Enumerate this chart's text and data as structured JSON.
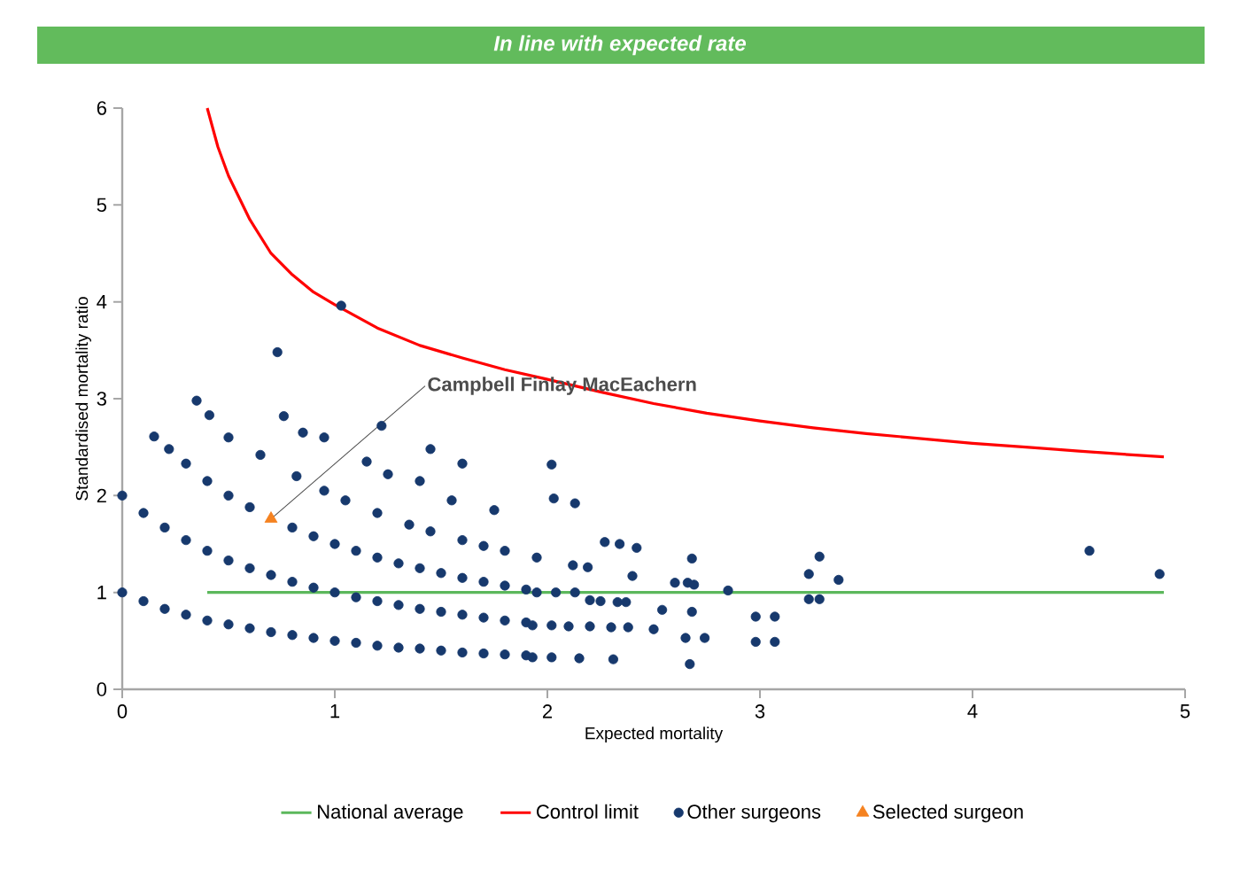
{
  "chart_data": {
    "type": "scatter",
    "title": "In line with expected rate",
    "xlabel": "Expected mortality",
    "ylabel": "Standardised mortality ratio",
    "xlim": [
      0,
      5
    ],
    "ylim": [
      0,
      6
    ],
    "xticks": [
      0,
      1,
      2,
      3,
      4,
      5
    ],
    "yticks": [
      0,
      1,
      2,
      3,
      4,
      5,
      6
    ],
    "legend": "bottom",
    "grid": false,
    "annotations": [
      {
        "text": "Campbell Finlay MacEachern",
        "x": 0.7,
        "y": 1.76
      }
    ],
    "series": [
      {
        "name": "National average",
        "type": "line",
        "color": "#5cb85c",
        "x": [
          0.4,
          4.9
        ],
        "values": [
          1,
          1
        ]
      },
      {
        "name": "Control limit",
        "type": "line",
        "color": "#ff0000",
        "x": [
          0.4,
          0.45,
          0.5,
          0.6,
          0.7,
          0.8,
          0.9,
          1.0,
          1.2,
          1.4,
          1.6,
          1.8,
          2.0,
          2.25,
          2.5,
          2.75,
          3.0,
          3.25,
          3.5,
          3.75,
          4.0,
          4.25,
          4.5,
          4.75,
          4.9
        ],
        "values": [
          6.0,
          5.6,
          5.3,
          4.85,
          4.5,
          4.28,
          4.1,
          3.97,
          3.73,
          3.55,
          3.42,
          3.3,
          3.2,
          3.07,
          2.95,
          2.85,
          2.77,
          2.7,
          2.64,
          2.59,
          2.54,
          2.5,
          2.46,
          2.42,
          2.4
        ]
      },
      {
        "name": "Other surgeons",
        "marker": "circle",
        "color": "#17396d",
        "x": [
          0,
          0.1,
          0.2,
          0.3,
          0.4,
          0.5,
          0.6,
          0.7,
          0.8,
          0.9,
          1.0,
          1.1,
          1.2,
          1.3,
          1.4,
          1.5,
          1.6,
          1.7,
          1.8,
          1.9,
          1.93,
          2.02,
          2.15,
          2.31,
          2.67,
          0,
          0.1,
          0.2,
          0.3,
          0.4,
          0.5,
          0.6,
          0.7,
          0.8,
          0.9,
          1.0,
          1.1,
          1.2,
          1.3,
          1.4,
          1.5,
          1.6,
          1.7,
          1.8,
          1.9,
          1.93,
          2.02,
          2.1,
          2.2,
          2.3,
          2.38,
          2.5,
          2.65,
          2.74,
          0.15,
          0.22,
          0.3,
          0.4,
          0.5,
          0.6,
          0.8,
          0.9,
          1.0,
          1.1,
          1.2,
          1.3,
          1.4,
          1.5,
          1.6,
          1.7,
          1.8,
          1.9,
          1.95,
          2.04,
          2.13,
          2.2,
          2.25,
          2.33,
          2.37,
          0.5,
          0.65,
          0.82,
          0.95,
          1.05,
          1.2,
          1.35,
          1.45,
          1.6,
          1.7,
          1.8,
          1.95,
          0.35,
          0.41,
          0.76,
          0.85,
          0.95,
          1.15,
          1.25,
          1.4,
          1.55,
          1.03,
          0.73,
          1.22,
          1.45,
          1.6,
          1.75,
          2.02,
          2.03,
          2.13,
          2.27,
          2.34,
          2.42,
          2.12,
          2.19,
          2.4,
          2.6,
          2.66,
          2.68,
          2.69,
          2.54,
          2.68,
          2.85,
          2.98,
          3.07,
          2.98,
          3.07,
          3.23,
          3.28,
          3.37,
          3.23,
          3.28,
          4.55,
          4.88
        ],
        "values": [
          1.0,
          0.91,
          0.83,
          0.77,
          0.71,
          0.67,
          0.63,
          0.59,
          0.56,
          0.53,
          0.5,
          0.48,
          0.45,
          0.43,
          0.42,
          0.4,
          0.38,
          0.37,
          0.36,
          0.35,
          0.33,
          0.33,
          0.32,
          0.31,
          0.26,
          2.0,
          1.82,
          1.67,
          1.54,
          1.43,
          1.33,
          1.25,
          1.18,
          1.11,
          1.05,
          1.0,
          0.95,
          0.91,
          0.87,
          0.83,
          0.8,
          0.77,
          0.74,
          0.71,
          0.69,
          0.66,
          0.66,
          0.65,
          0.65,
          0.64,
          0.64,
          0.62,
          0.53,
          0.53,
          2.61,
          2.48,
          2.33,
          2.15,
          2.0,
          1.88,
          1.67,
          1.58,
          1.5,
          1.43,
          1.36,
          1.3,
          1.25,
          1.2,
          1.15,
          1.11,
          1.07,
          1.03,
          1.0,
          1.0,
          1.0,
          0.92,
          0.91,
          0.9,
          0.9,
          2.6,
          2.42,
          2.2,
          2.05,
          1.95,
          1.82,
          1.7,
          1.63,
          1.54,
          1.48,
          1.43,
          1.36,
          2.98,
          2.83,
          2.82,
          2.65,
          2.6,
          2.35,
          2.22,
          2.15,
          1.95,
          3.96,
          3.48,
          2.72,
          2.48,
          2.33,
          1.85,
          2.32,
          1.97,
          1.92,
          1.52,
          1.5,
          1.46,
          1.28,
          1.26,
          1.17,
          1.1,
          1.1,
          1.35,
          1.08,
          0.82,
          0.8,
          1.02,
          0.75,
          0.75,
          0.49,
          0.49,
          1.19,
          1.37,
          1.13,
          0.93,
          0.93,
          1.43,
          1.19
        ]
      },
      {
        "name": "Selected surgeon",
        "marker": "triangle",
        "color": "#f58220",
        "x": [
          0.7
        ],
        "values": [
          1.76
        ]
      }
    ]
  }
}
